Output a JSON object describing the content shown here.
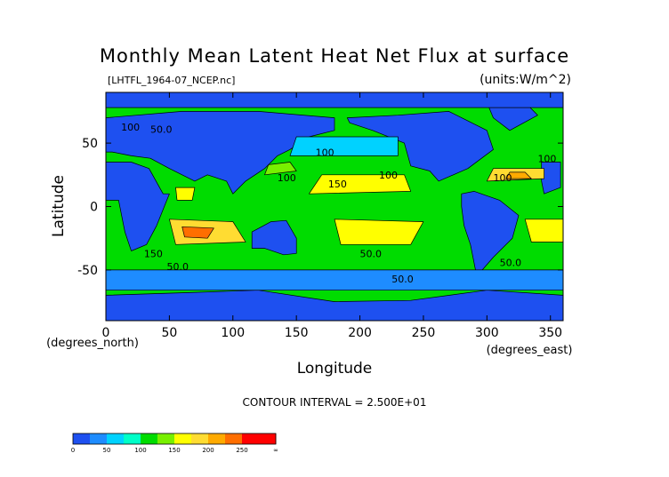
{
  "chart_data": {
    "type": "heatmap",
    "title": "Monthly Mean Latent Heat Net Flux at surface",
    "file_label": "[LHTFL_1964-07_NCEP.nc]",
    "units_label": "(units:W/m^2)",
    "xlabel": "Longitude",
    "ylabel": "Latitude",
    "x_unit": "(degrees_east)",
    "y_unit": "(degrees_north)",
    "xlim": [
      0,
      360
    ],
    "ylim": [
      -90,
      90
    ],
    "x_ticks": [
      0,
      50,
      100,
      150,
      200,
      250,
      300,
      350
    ],
    "y_ticks": [
      -50,
      0,
      50
    ],
    "contour_interval": "CONTOUR INTERVAL = 2.500E+01",
    "contour_labels": [
      "100",
      "50.0",
      "150",
      "50.0",
      "100",
      "100",
      "150",
      "100",
      "100",
      "100",
      "50.0",
      "50.0",
      "50.0"
    ],
    "colorbar": {
      "ticks": [
        "0",
        "50",
        "100",
        "150",
        "200",
        "250",
        "∞"
      ],
      "bins": [
        {
          "from": 0,
          "to": 25,
          "color": "#1e50f0"
        },
        {
          "from": 25,
          "to": 50,
          "color": "#1e8cff"
        },
        {
          "from": 50,
          "to": 75,
          "color": "#00d2ff"
        },
        {
          "from": 75,
          "to": 100,
          "color": "#00ffc8"
        },
        {
          "from": 100,
          "to": 125,
          "color": "#00dc00"
        },
        {
          "from": 125,
          "to": 150,
          "color": "#78f000"
        },
        {
          "from": 150,
          "to": 175,
          "color": "#ffff00"
        },
        {
          "from": 175,
          "to": 200,
          "color": "#ffdc32"
        },
        {
          "from": 200,
          "to": 225,
          "color": "#ffaa00"
        },
        {
          "from": 225,
          "to": 250,
          "color": "#ff6e00"
        },
        {
          "from": 250,
          "to": 275,
          "color": "#ff0000"
        },
        {
          "from": 275,
          "to": "∞",
          "color": "#ff0000"
        }
      ]
    },
    "regions": [
      {
        "name": "North America",
        "value": 10,
        "points": [
          [
            190,
            70
          ],
          [
            230,
            72
          ],
          [
            270,
            75
          ],
          [
            300,
            60
          ],
          [
            305,
            45
          ],
          [
            285,
            30
          ],
          [
            262,
            20
          ],
          [
            255,
            28
          ],
          [
            240,
            32
          ],
          [
            235,
            50
          ],
          [
            210,
            60
          ],
          [
            192,
            66
          ]
        ]
      },
      {
        "name": "Greenland",
        "value": 10,
        "points": [
          [
            300,
            82
          ],
          [
            330,
            82
          ],
          [
            340,
            72
          ],
          [
            318,
            60
          ],
          [
            305,
            70
          ]
        ]
      },
      {
        "name": "South America",
        "value": 10,
        "points": [
          [
            280,
            10
          ],
          [
            290,
            12
          ],
          [
            310,
            5
          ],
          [
            325,
            -7
          ],
          [
            320,
            -25
          ],
          [
            305,
            -40
          ],
          [
            292,
            -55
          ],
          [
            287,
            -30
          ],
          [
            282,
            -15
          ],
          [
            280,
            0
          ]
        ]
      },
      {
        "name": "Africa",
        "value": 10,
        "points": [
          [
            343,
            35
          ],
          [
            358,
            35
          ],
          [
            358,
            15
          ],
          [
            345,
            10
          ],
          [
            343,
            20
          ]
        ]
      },
      {
        "name": "Africa east",
        "value": 10,
        "points": [
          [
            0,
            35
          ],
          [
            20,
            35
          ],
          [
            34,
            30
          ],
          [
            45,
            10
          ],
          [
            50,
            10
          ],
          [
            40,
            -15
          ],
          [
            32,
            -30
          ],
          [
            20,
            -35
          ],
          [
            15,
            -20
          ],
          [
            10,
            5
          ],
          [
            0,
            5
          ]
        ]
      },
      {
        "name": "Eurasia",
        "value": 10,
        "points": [
          [
            0,
            70
          ],
          [
            60,
            75
          ],
          [
            120,
            75
          ],
          [
            180,
            70
          ],
          [
            180,
            60
          ],
          [
            160,
            55
          ],
          [
            145,
            45
          ],
          [
            135,
            40
          ],
          [
            125,
            30
          ],
          [
            110,
            20
          ],
          [
            100,
            10
          ],
          [
            95,
            20
          ],
          [
            80,
            25
          ],
          [
            70,
            20
          ],
          [
            60,
            25
          ],
          [
            50,
            30
          ],
          [
            35,
            38
          ],
          [
            20,
            40
          ],
          [
            5,
            43
          ],
          [
            0,
            43
          ]
        ]
      },
      {
        "name": "Australia",
        "value": 10,
        "points": [
          [
            115,
            -20
          ],
          [
            130,
            -12
          ],
          [
            142,
            -11
          ],
          [
            150,
            -25
          ],
          [
            150,
            -37
          ],
          [
            140,
            -38
          ],
          [
            125,
            -33
          ],
          [
            115,
            -33
          ]
        ]
      },
      {
        "name": "Antarctica",
        "value": 10,
        "points": [
          [
            0,
            -70
          ],
          [
            60,
            -68
          ],
          [
            120,
            -66
          ],
          [
            180,
            -75
          ],
          [
            240,
            -74
          ],
          [
            300,
            -66
          ],
          [
            360,
            -70
          ],
          [
            360,
            -90
          ],
          [
            0,
            -90
          ]
        ]
      },
      {
        "name": "Arctic",
        "value": 10,
        "points": [
          [
            0,
            90
          ],
          [
            360,
            90
          ],
          [
            360,
            78
          ],
          [
            0,
            78
          ]
        ]
      },
      {
        "name": "Southern ocean band",
        "value": 30,
        "points": [
          [
            0,
            -50
          ],
          [
            360,
            -50
          ],
          [
            360,
            -66
          ],
          [
            0,
            -66
          ]
        ]
      },
      {
        "name": "N Pacific",
        "value": 60,
        "points": [
          [
            145,
            40
          ],
          [
            230,
            40
          ],
          [
            230,
            55
          ],
          [
            150,
            55
          ]
        ]
      },
      {
        "name": "Indian Ocean high",
        "value": 190,
        "points": [
          [
            50,
            -10
          ],
          [
            100,
            -12
          ],
          [
            110,
            -28
          ],
          [
            55,
            -30
          ]
        ]
      },
      {
        "name": "Indian Ocean core",
        "value": 230,
        "points": [
          [
            60,
            -16
          ],
          [
            85,
            -17
          ],
          [
            80,
            -25
          ],
          [
            62,
            -24
          ]
        ]
      },
      {
        "name": "S Pacific high",
        "value": 170,
        "points": [
          [
            180,
            -10
          ],
          [
            250,
            -12
          ],
          [
            240,
            -30
          ],
          [
            185,
            -30
          ]
        ]
      },
      {
        "name": "N Pacific tropics",
        "value": 160,
        "points": [
          [
            160,
            10
          ],
          [
            240,
            12
          ],
          [
            235,
            25
          ],
          [
            170,
            25
          ]
        ]
      },
      {
        "name": "N Atlantic high",
        "value": 180,
        "points": [
          [
            300,
            20
          ],
          [
            345,
            22
          ],
          [
            345,
            30
          ],
          [
            305,
            30
          ]
        ]
      },
      {
        "name": "N Atlantic core",
        "value": 220,
        "points": [
          [
            315,
            22
          ],
          [
            335,
            22
          ],
          [
            330,
            27
          ],
          [
            318,
            27
          ]
        ]
      },
      {
        "name": "S Atlantic high",
        "value": 160,
        "points": [
          [
            330,
            -10
          ],
          [
            360,
            -10
          ],
          [
            360,
            -28
          ],
          [
            335,
            -28
          ]
        ]
      },
      {
        "name": "Kuroshio",
        "value": 140,
        "points": [
          [
            125,
            25
          ],
          [
            150,
            28
          ],
          [
            145,
            35
          ],
          [
            128,
            33
          ]
        ]
      },
      {
        "name": "Arabian sea",
        "value": 170,
        "points": [
          [
            55,
            15
          ],
          [
            70,
            15
          ],
          [
            68,
            5
          ],
          [
            56,
            5
          ]
        ]
      }
    ],
    "background_value": 110
  }
}
